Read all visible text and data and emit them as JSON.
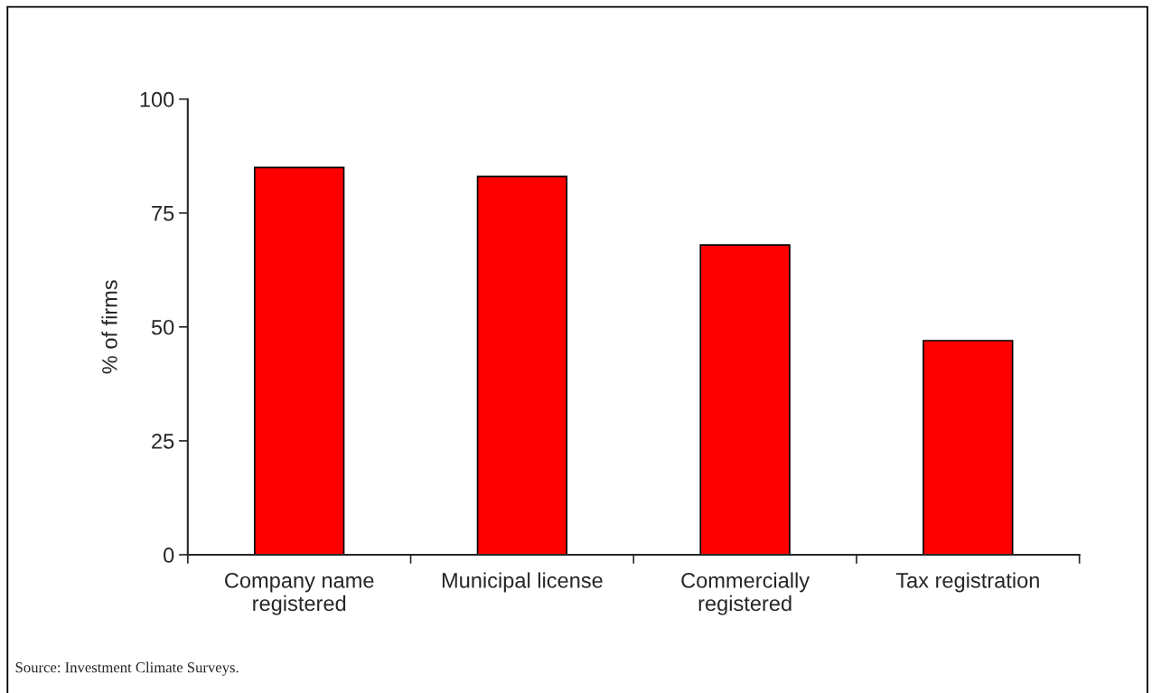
{
  "chart_data": {
    "type": "bar",
    "categories": [
      "Company name\nregistered",
      "Municipal license",
      "Commercially\nregistered",
      "Tax registration"
    ],
    "values": [
      85,
      83,
      68,
      47
    ],
    "color": "#ff0000",
    "ylabel": "% of firms",
    "ylim": [
      0,
      100
    ],
    "yticks": [
      0,
      25,
      50,
      75,
      100
    ],
    "grid": false,
    "legend": false,
    "annotations": [
      "Source: Investment Climate Surveys."
    ]
  }
}
